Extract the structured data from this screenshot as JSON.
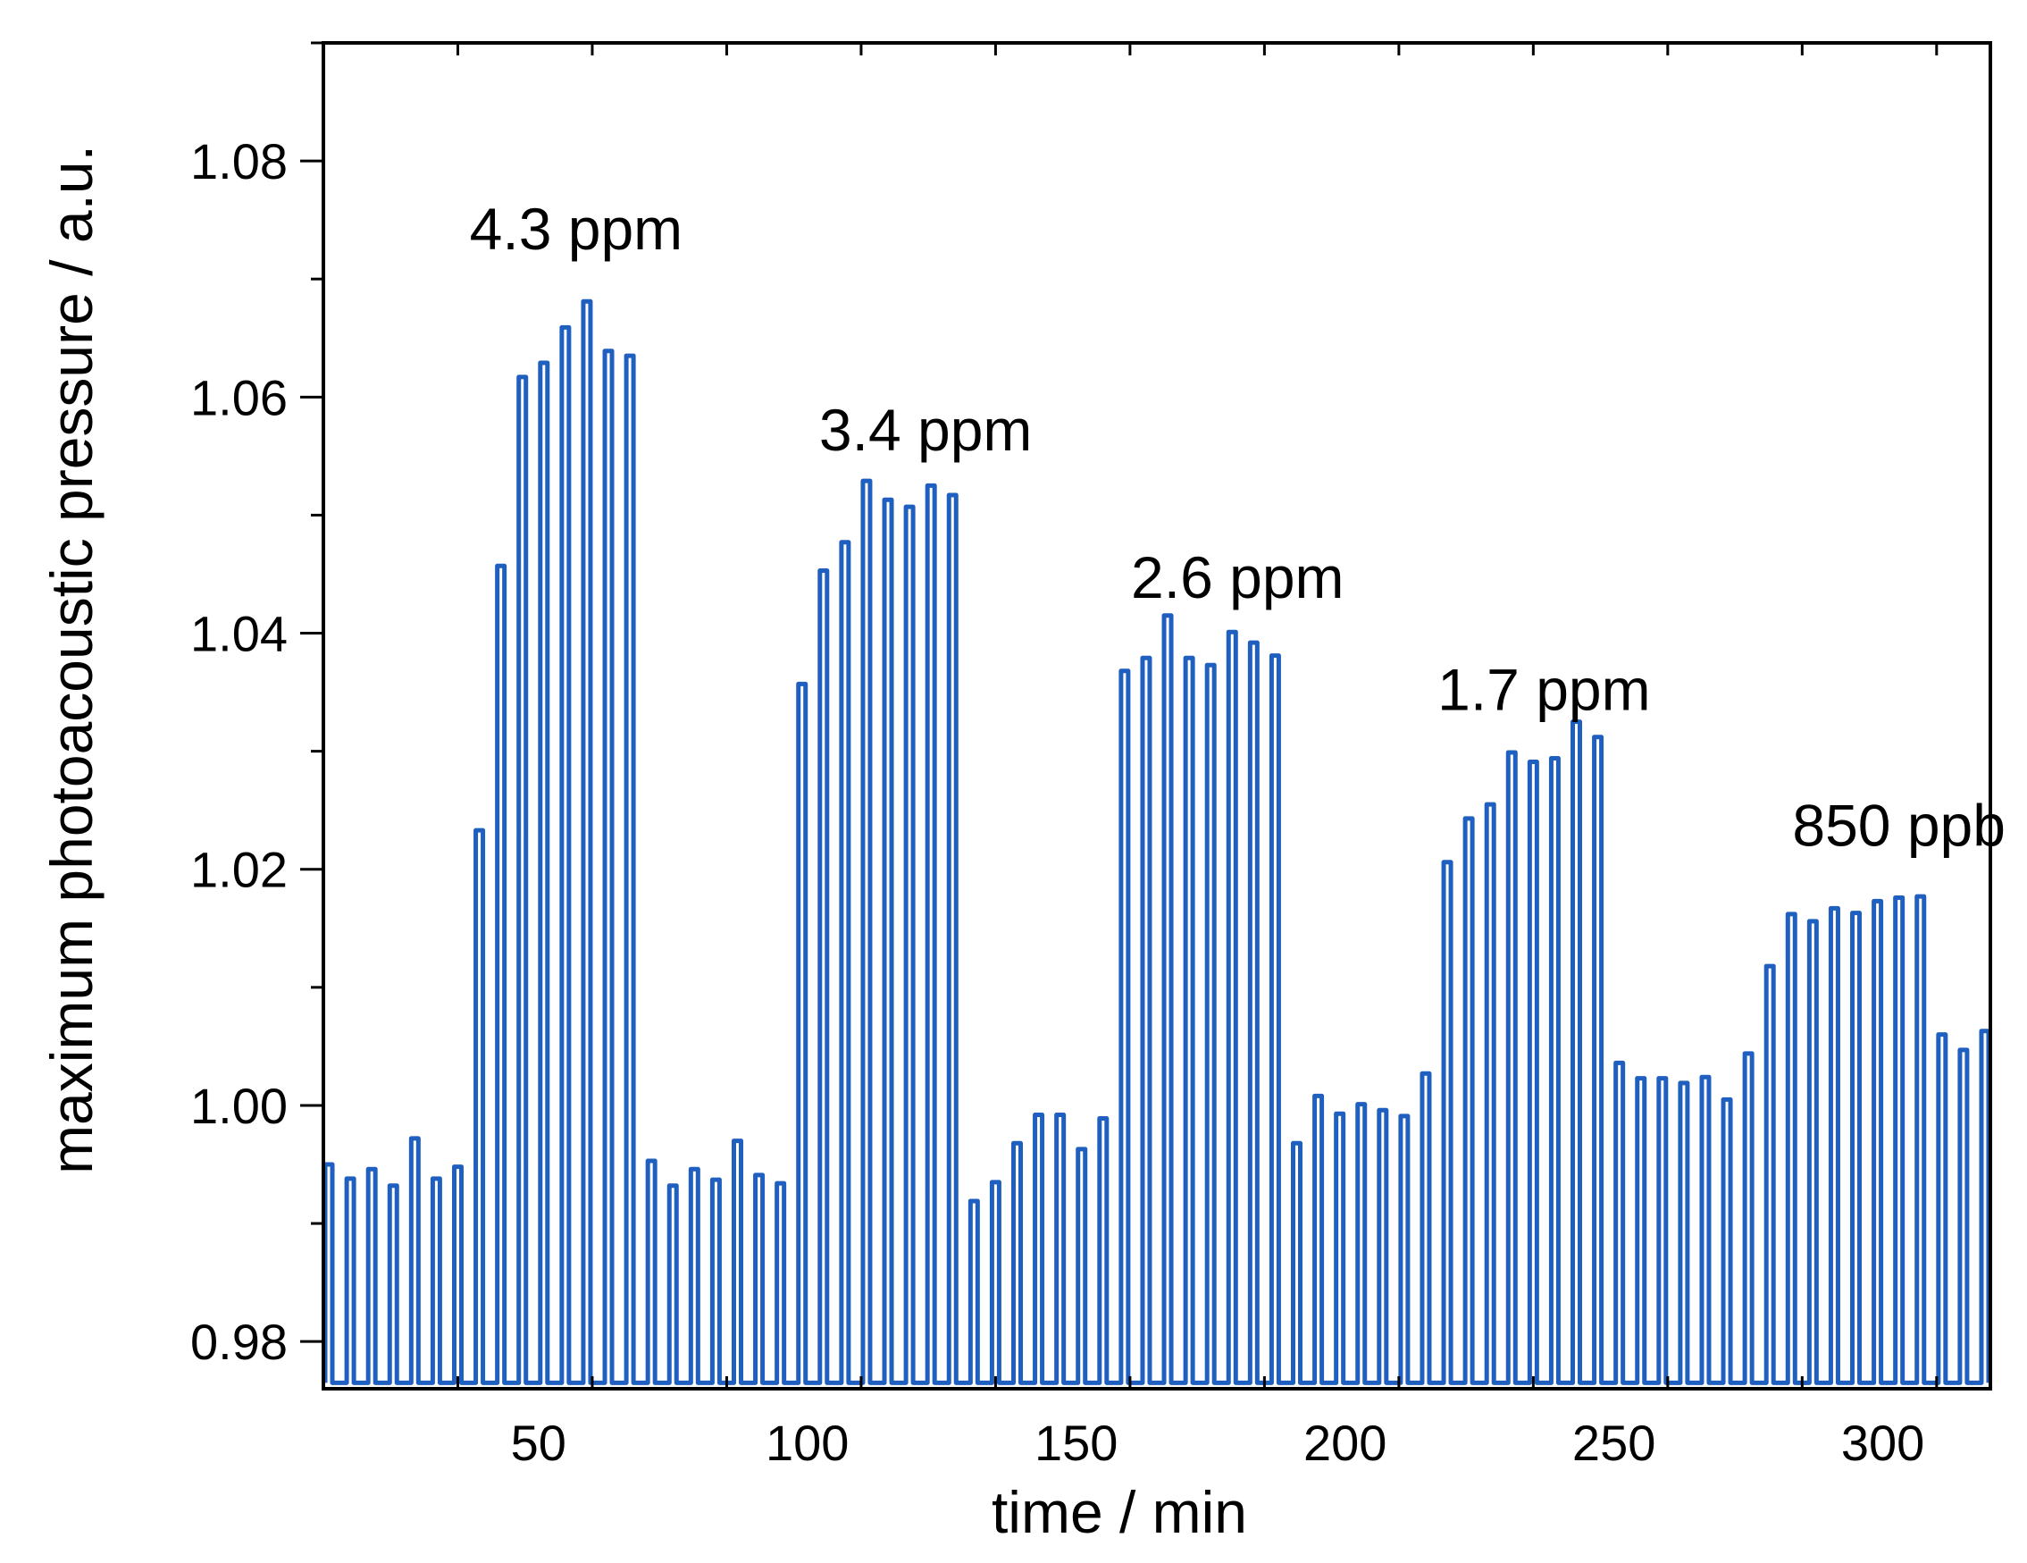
{
  "chart_data": {
    "type": "line",
    "title": "",
    "xlabel": "time  / min",
    "ylabel": "maximum photoacoustic pressure / a.u.",
    "xlim": [
      10,
      320
    ],
    "ylim": [
      0.976,
      1.09
    ],
    "x_ticks": [
      50,
      100,
      150,
      200,
      250,
      300
    ],
    "x_tick_labels": [
      "50",
      "100",
      "150",
      "200",
      "250",
      "300"
    ],
    "y_ticks": [
      0.98,
      1.0,
      1.02,
      1.04,
      1.06,
      1.08
    ],
    "y_tick_labels": [
      "0.98",
      "1.00",
      "1.02",
      "1.04",
      "1.06",
      "1.08"
    ],
    "baseline": 0.9765,
    "line_color": "#1f5fbf",
    "series": [
      {
        "name": "maximum photoacoustic pressure",
        "pulse_times": [
          11,
          15,
          19,
          23,
          27,
          31,
          35,
          39,
          43,
          47,
          51,
          55,
          59,
          63,
          67,
          71,
          75,
          79,
          83,
          87,
          91,
          95,
          99,
          103,
          107,
          111,
          115,
          119,
          123,
          127,
          131,
          135,
          139,
          143,
          147,
          151,
          155,
          159,
          163,
          167,
          171,
          175,
          179,
          183,
          187,
          191,
          195,
          199,
          203,
          207,
          211,
          215,
          219,
          223,
          227,
          231,
          235,
          239,
          243,
          247,
          251,
          255,
          259,
          263,
          267,
          271,
          275,
          279,
          283,
          287,
          291,
          295,
          299,
          303,
          307,
          311,
          315,
          319
        ],
        "values": [
          0.995,
          0.9938,
          0.9946,
          0.9932,
          0.9972,
          0.9938,
          0.9948,
          1.0233,
          1.0457,
          1.0617,
          1.0629,
          1.0659,
          1.0681,
          1.0639,
          1.0635,
          0.9953,
          0.9932,
          0.9946,
          0.9937,
          0.997,
          0.9941,
          0.9934,
          1.0357,
          1.0453,
          1.0477,
          1.0529,
          1.0513,
          1.0507,
          1.0525,
          1.0517,
          0.9919,
          0.9935,
          0.9968,
          0.9992,
          0.9992,
          0.9963,
          0.9989,
          1.0368,
          1.0379,
          1.0415,
          1.0379,
          1.0373,
          1.0401,
          1.0392,
          1.0381,
          0.9968,
          1.0008,
          0.9993,
          1.0001,
          0.9996,
          0.9991,
          1.0027,
          1.0206,
          1.0243,
          1.0255,
          1.0299,
          1.0291,
          1.0294,
          1.0325,
          1.0312,
          1.0036,
          1.0023,
          1.0023,
          1.0019,
          1.0024,
          1.0005,
          1.0044,
          1.0118,
          1.0162,
          1.0156,
          1.0167,
          1.0163,
          1.0173,
          1.0176,
          1.0177,
          1.006,
          1.0047,
          1.0063
        ]
      }
    ],
    "annotations": [
      {
        "text": "4.3 ppm",
        "x": 57,
        "y": 1.0725
      },
      {
        "text": "3.4 ppm",
        "x": 122,
        "y": 1.0555
      },
      {
        "text": "2.6 ppm",
        "x": 180,
        "y": 1.043
      },
      {
        "text": "1.7 ppm",
        "x": 237,
        "y": 1.0335
      },
      {
        "text": "850 ppb",
        "x": 303,
        "y": 1.022
      }
    ]
  }
}
